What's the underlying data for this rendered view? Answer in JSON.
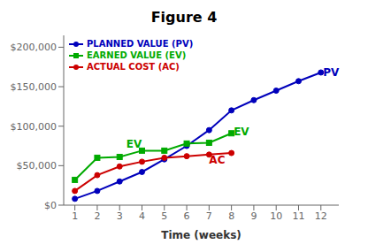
{
  "chart_data": {
    "type": "line",
    "title": "Figure 4",
    "x_label": "Time (weeks)",
    "series": [
      {
        "name": "PLANNED VALUE (PV)",
        "color": "#0000BB",
        "marker": "circle",
        "x": [
          1,
          2,
          3,
          4,
          5,
          6,
          7,
          8,
          9,
          10,
          11,
          12
        ],
        "values": [
          8000,
          18000,
          30000,
          42000,
          58000,
          75000,
          95000,
          120000,
          133000,
          145000,
          157000,
          168000
        ]
      },
      {
        "name": "EARNED VALUE (EV)",
        "color": "#00AA00",
        "marker": "square",
        "x": [
          1,
          2,
          3,
          4,
          5,
          6,
          7,
          8
        ],
        "values": [
          32000,
          60000,
          61000,
          69000,
          69000,
          78000,
          79000,
          91000
        ]
      },
      {
        "name": "ACTUAL COST (AC)",
        "color": "#CC0000",
        "marker": "circle",
        "x": [
          1,
          2,
          3,
          4,
          5,
          6,
          7,
          8
        ],
        "values": [
          18000,
          38000,
          49000,
          55000,
          60000,
          62000,
          64000,
          66000
        ]
      }
    ],
    "xlim": [
      0.5,
      12.8
    ],
    "xticks": [
      1,
      2,
      3,
      4,
      5,
      6,
      7,
      8,
      9,
      10,
      11,
      12
    ],
    "ylim": [
      0,
      215000
    ],
    "yticks": [
      {
        "value": 0,
        "label": "$0"
      },
      {
        "value": 50000,
        "label": "$50,000"
      },
      {
        "value": 100000,
        "label": "$100,000"
      },
      {
        "value": 150000,
        "label": "$150,000"
      },
      {
        "value": 200000,
        "label": "$200,000"
      }
    ],
    "grid": false,
    "legend": "upper left",
    "annotations": [
      {
        "text": "EV",
        "x": 3.3,
        "y": 77000,
        "color": "#00AA00"
      },
      {
        "text": "PV",
        "x": 12.1,
        "y": 168000,
        "color": "#0000BB"
      },
      {
        "text": "EV",
        "x": 8.1,
        "y": 93000,
        "color": "#00AA00"
      },
      {
        "text": "AC",
        "x": 7.0,
        "y": 57500,
        "color": "#CC0000"
      }
    ]
  }
}
